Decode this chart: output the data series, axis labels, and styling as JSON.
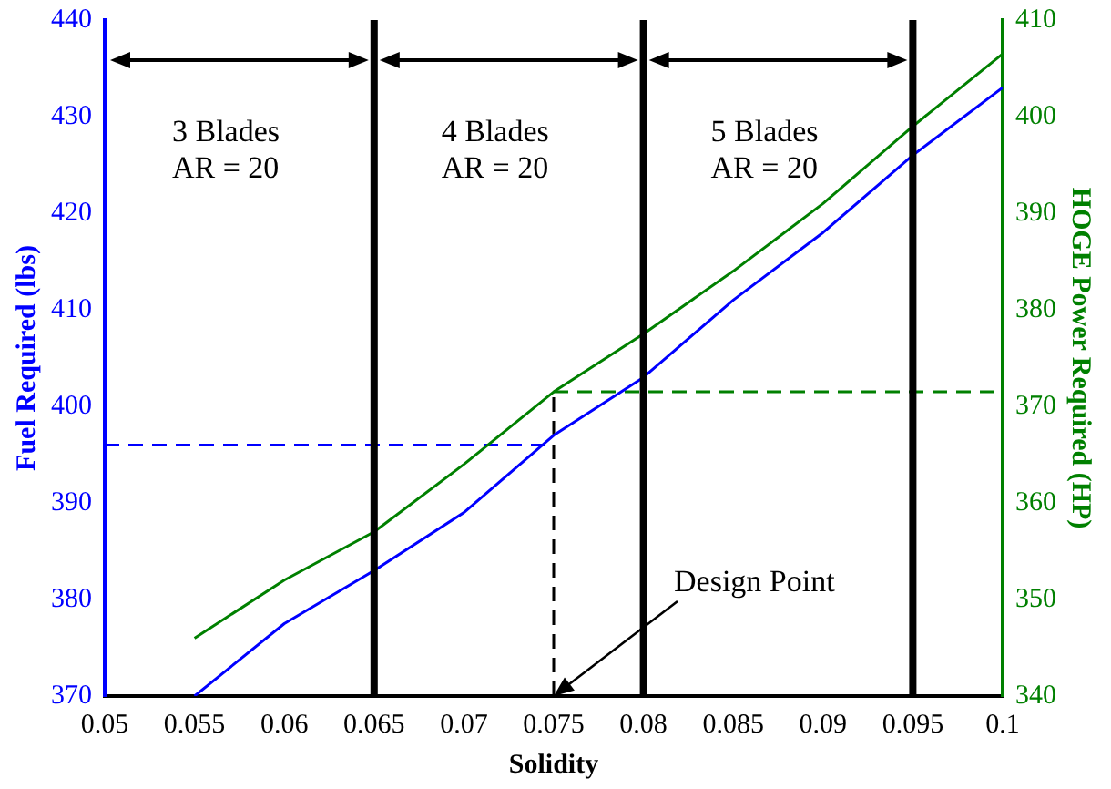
{
  "chart_data": {
    "type": "line",
    "xlabel": "Solidity",
    "ylabel": "Fuel Required (lbs)",
    "y2label": "HOGE Power Required (HP)",
    "x": [
      0.055,
      0.06,
      0.065,
      0.07,
      0.075,
      0.08,
      0.085,
      0.09,
      0.095,
      0.1
    ],
    "series": [
      {
        "color": "#0000ff",
        "values": [
          370,
          377.5,
          383,
          389,
          397,
          403,
          411,
          418,
          426,
          433
        ]
      },
      {
        "color": "#008000",
        "axis": "y2",
        "values": [
          346,
          352,
          357,
          364,
          371.5,
          377.5,
          384,
          391,
          399,
          406.5
        ]
      },
      {
        "color": "#0000ff",
        "x": [
          0.05,
          0.075
        ],
        "values": [
          396,
          396
        ],
        "line_style": "dashed"
      },
      {
        "color": "#008000",
        "axis": "y2",
        "x": [
          0.075,
          0.1
        ],
        "values": [
          371.5,
          371.5
        ],
        "line_style": "dashed"
      },
      {
        "color": "#000000",
        "x": [
          0.075,
          0.075
        ],
        "values": [
          370,
          401.5
        ],
        "line_style": "dashed"
      }
    ],
    "ref_lines": [
      {
        "axis": "x",
        "value": 0.065,
        "color": "#000000"
      },
      {
        "axis": "x",
        "value": 0.08,
        "color": "#000000"
      },
      {
        "axis": "x",
        "value": 0.095,
        "color": "#000000"
      }
    ],
    "annotations": [
      "3 Blades\nAR = 20",
      "4 Blades\nAR = 20",
      "5 Blades\nAR = 20",
      {
        "text": "Design Point",
        "x": 0.075,
        "y": 370
      }
    ],
    "xlim": [
      0.05,
      0.1
    ],
    "xticks": [
      0.05,
      0.055,
      0.06,
      0.065,
      0.07,
      0.075,
      0.08,
      0.085,
      0.09,
      0.095,
      0.1
    ],
    "ylim": [
      370,
      440
    ],
    "yticks": [
      370,
      380,
      390,
      400,
      410,
      420,
      430,
      440
    ],
    "y2lim": [
      340,
      410
    ],
    "y2ticks": [
      340,
      350,
      360,
      370,
      380,
      390,
      400,
      410
    ],
    "grid": false,
    "legend": false,
    "marker": "none",
    "line_style": "solid"
  }
}
